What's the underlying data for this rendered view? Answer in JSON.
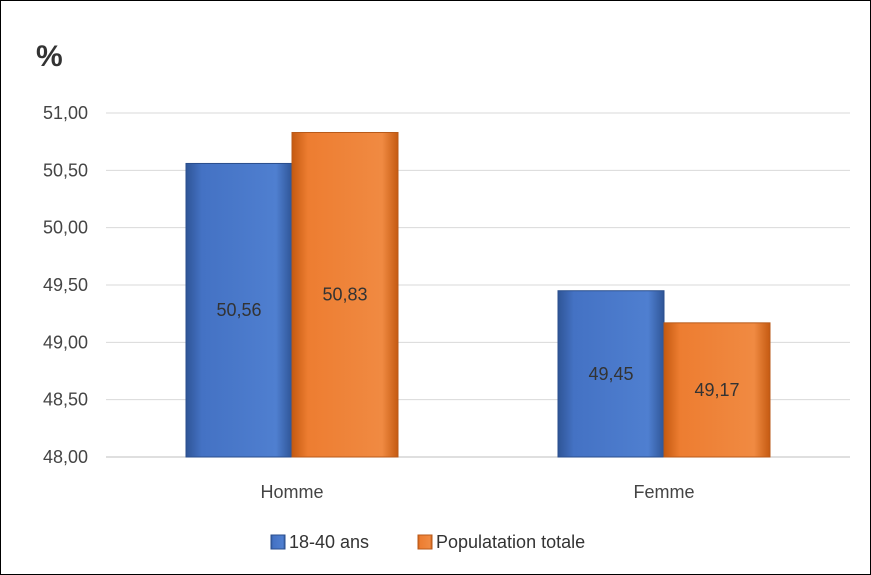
{
  "chart_data": {
    "type": "bar",
    "title": "%",
    "categories": [
      "Homme",
      "Femme"
    ],
    "series": [
      {
        "name": "18-40 ans",
        "values": [
          50.56,
          49.45
        ],
        "color": "#4472C4",
        "labels": [
          "50,56",
          "49,45"
        ]
      },
      {
        "name": "Populatation totale",
        "values": [
          50.83,
          49.17
        ],
        "color": "#ED7D31",
        "labels": [
          "50,83",
          "49,17"
        ]
      }
    ],
    "ylim": [
      48.0,
      51.0
    ],
    "yticks": [
      48.0,
      48.5,
      49.0,
      49.5,
      50.0,
      50.5,
      51.0
    ],
    "ytick_labels": [
      "48,00",
      "48,50",
      "49,00",
      "49,50",
      "50,00",
      "50,50",
      "51,00"
    ],
    "grid": true,
    "legend_position": "bottom"
  }
}
